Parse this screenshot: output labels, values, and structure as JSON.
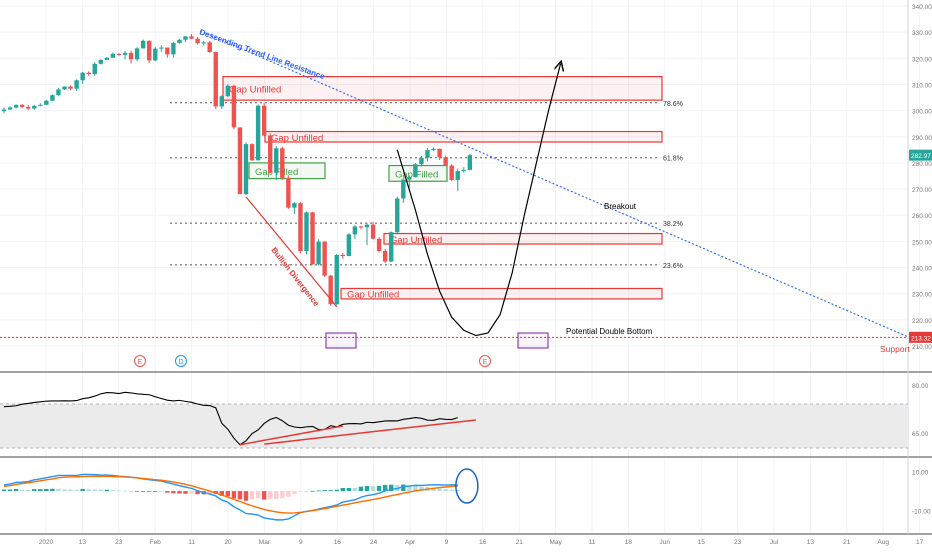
{
  "chart_data": {
    "type": "candlestick",
    "title": "",
    "colors": {
      "up": "#26a69a",
      "down": "#ef5350",
      "trendline": "#2962ff",
      "zone": "#e53935",
      "filled_zone": "#43a047",
      "support": "#e53935",
      "macd_line": "#2196f3",
      "signal_line": "#ff6d00",
      "projection": "#000000",
      "marker_box": "#7b1fa2"
    },
    "y_axis_ticks": [
      "340.00",
      "330.00",
      "320.00",
      "310.00",
      "300.00",
      "290.00",
      "280.00",
      "270.00",
      "260.00",
      "250.00",
      "240.00",
      "230.00",
      "220.00",
      "210.00"
    ],
    "x_axis_ticks": [
      "2020",
      "13",
      "23",
      "Feb",
      "11",
      "20",
      "Mar",
      "9",
      "16",
      "24",
      "Apr",
      "9",
      "16",
      "21",
      "May",
      "11",
      "18",
      "Jun",
      "15",
      "23",
      "Jul",
      "13",
      "21",
      "Aug",
      "17"
    ],
    "price_labels": {
      "current": "282.97",
      "support": "213.32"
    },
    "fib_levels": [
      {
        "label": "78.6%",
        "value": 303
      },
      {
        "label": "61.8%",
        "value": 282
      },
      {
        "label": "38.2%",
        "value": 257
      },
      {
        "label": "23.6%",
        "value": 241
      }
    ],
    "gap_zones": [
      {
        "label": "Gap Unfilled",
        "status": "unfilled",
        "low": 304,
        "high": 313
      },
      {
        "label": "Gap Unfilled",
        "status": "unfilled",
        "low": 288,
        "high": 292
      },
      {
        "label": "Gap Filled",
        "status": "filled",
        "low": 274,
        "high": 280
      },
      {
        "label": "Gap Filled",
        "status": "filled",
        "low": 273,
        "high": 279
      },
      {
        "label": "Gap Unfilled",
        "status": "unfilled",
        "low": 249,
        "high": 253
      },
      {
        "label": "Gap Unfilled",
        "status": "unfilled",
        "low": 228,
        "high": 232
      }
    ],
    "annotations": {
      "trendline": "Descending Trend Line Resistance",
      "divergence": "Bullish Divergence",
      "breakout": "Breakout",
      "double_bottom": "Potential Double Bottom",
      "support": "Support"
    },
    "event_markers": [
      "E",
      "D",
      "E"
    ],
    "candles": [
      [
        299.8,
        301.2,
        299.0,
        300.4
      ],
      [
        300.4,
        301.7,
        300.3,
        301.2
      ],
      [
        301.2,
        302.4,
        300.8,
        302.2
      ],
      [
        302.2,
        302.5,
        300.9,
        301.4
      ],
      [
        301.4,
        302.2,
        300.2,
        300.8
      ],
      [
        300.8,
        302.2,
        300.3,
        301.8
      ],
      [
        301.8,
        302.8,
        301.6,
        302.2
      ],
      [
        302.2,
        304.1,
        302.2,
        303.8
      ],
      [
        303.8,
        306.3,
        303.7,
        305.9
      ],
      [
        305.9,
        308.7,
        305.5,
        308.1
      ],
      [
        308.1,
        309.3,
        307.9,
        309.2
      ],
      [
        309.2,
        309.6,
        307.8,
        308.4
      ],
      [
        308.4,
        311.9,
        307.5,
        311.6
      ],
      [
        311.6,
        314.8,
        310.2,
        314.5
      ],
      [
        314.5,
        315.0,
        313.3,
        314.0
      ],
      [
        314.0,
        318.5,
        313.3,
        317.9
      ],
      [
        317.9,
        319.6,
        317.6,
        319.4
      ],
      [
        319.4,
        320.5,
        319.3,
        320.2
      ],
      [
        320.2,
        322.3,
        320.2,
        321.7
      ],
      [
        321.7,
        322.0,
        321.0,
        321.3
      ],
      [
        321.3,
        322.8,
        319.6,
        322.1
      ],
      [
        322.1,
        322.9,
        318.0,
        319.6
      ],
      [
        319.6,
        324.2,
        318.9,
        323.8
      ],
      [
        323.8,
        327.2,
        323.7,
        326.7
      ],
      [
        326.7,
        326.8,
        318.2,
        319.2
      ],
      [
        319.2,
        324.3,
        318.9,
        323.7
      ],
      [
        323.7,
        325.0,
        322.5,
        324.1
      ],
      [
        324.1,
        324.1,
        320.2,
        321.5
      ],
      [
        321.5,
        326.3,
        320.3,
        325.9
      ],
      [
        325.9,
        327.4,
        325.6,
        327.1
      ],
      [
        327.1,
        328.5,
        326.2,
        328.4
      ],
      [
        328.4,
        329.3,
        327.3,
        327.5
      ],
      [
        327.5,
        328.2,
        325.3,
        325.8
      ],
      [
        325.8,
        326.6,
        324.9,
        326.1
      ],
      [
        326.1,
        326.7,
        322.1,
        322.4
      ],
      [
        322.4,
        322.5,
        300.6,
        301.6
      ],
      [
        301.6,
        305.8,
        300.6,
        305.5
      ],
      [
        305.5,
        310.0,
        305.2,
        309.5
      ],
      [
        309.5,
        309.8,
        292.9,
        293.6
      ],
      [
        293.6,
        293.6,
        268.0,
        268.1
      ],
      [
        268.1,
        287.9,
        267.6,
        287.2
      ],
      [
        287.2,
        287.5,
        280.8,
        281.0
      ],
      [
        281.0,
        302.3,
        280.9,
        301.9
      ],
      [
        301.9,
        303.0,
        290.2,
        290.5
      ],
      [
        290.5,
        291.4,
        276.1,
        276.2
      ],
      [
        276.2,
        286.4,
        273.4,
        285.6
      ],
      [
        285.6,
        286.2,
        273.5,
        274.3
      ],
      [
        274.3,
        275.3,
        262.4,
        262.9
      ],
      [
        262.9,
        265.0,
        260.5,
        264.6
      ],
      [
        264.6,
        265.0,
        245.4,
        246.3
      ],
      [
        246.3,
        261.4,
        245.0,
        261.1
      ],
      [
        261.1,
        261.3,
        241.1,
        241.2
      ],
      [
        241.2,
        250.8,
        240.8,
        249.9
      ],
      [
        249.9,
        250.1,
        236.4,
        236.9
      ],
      [
        236.9,
        237.2,
        225.4,
        226.0
      ],
      [
        226.0,
        245.2,
        225.6,
        244.8
      ],
      [
        244.8,
        245.6,
        243.3,
        244.4
      ],
      [
        244.4,
        253.1,
        244.3,
        252.7
      ],
      [
        252.7,
        256.2,
        250.9,
        255.7
      ],
      [
        255.7,
        256.0,
        254.6,
        255.4
      ],
      [
        255.4,
        257.0,
        248.5,
        256.4
      ],
      [
        256.4,
        257.5,
        250.8,
        251.0
      ],
      [
        251.0,
        251.6,
        245.8,
        246.3
      ],
      [
        246.3,
        247.1,
        241.7,
        242.3
      ],
      [
        242.3,
        253.8,
        242.1,
        253.5
      ],
      [
        253.5,
        267.1,
        253.1,
        266.4
      ],
      [
        266.4,
        274.4,
        264.7,
        273.6
      ],
      [
        273.6,
        275.1,
        270.5,
        274.6
      ],
      [
        274.6,
        280.0,
        274.4,
        279.5
      ],
      [
        279.5,
        282.6,
        278.7,
        282.0
      ],
      [
        282.0,
        285.6,
        280.6,
        284.9
      ],
      [
        284.9,
        285.9,
        284.5,
        285.4
      ],
      [
        285.4,
        285.5,
        281.1,
        282.2
      ],
      [
        282.2,
        282.8,
        278.8,
        279.0
      ],
      [
        279.0,
        279.6,
        273.1,
        273.5
      ],
      [
        273.5,
        277.8,
        269.2,
        276.9
      ],
      [
        276.9,
        278.4,
        276.3,
        277.3
      ],
      [
        277.3,
        283.5,
        277.2,
        282.97
      ]
    ],
    "projection_path": [
      [
        65,
        285
      ],
      [
        68,
        262
      ],
      [
        70,
        245
      ],
      [
        72,
        231
      ],
      [
        74,
        221
      ],
      [
        76,
        216
      ],
      [
        78,
        214
      ],
      [
        80,
        215
      ],
      [
        82,
        222
      ],
      [
        84,
        238
      ],
      [
        86,
        260
      ],
      [
        88,
        280
      ],
      [
        90,
        300
      ],
      [
        92,
        318
      ]
    ],
    "rsi": {
      "ylim": [
        30,
        90
      ],
      "ticks": [
        "80.00",
        "65.00"
      ],
      "overbought": 70,
      "oversold": 30,
      "values": [
        67.6,
        67.9,
        68.4,
        69.8,
        70.5,
        71.4,
        72.0,
        72.6,
        72.8,
        72.8,
        72.9,
        72.8,
        73.1,
        74.8,
        75.6,
        77.2,
        79.2,
        80.4,
        80.2,
        79.5,
        80.6,
        80.1,
        79.3,
        78.8,
        78.4,
        76.6,
        75.0,
        73.5,
        72.8,
        73.3,
        72.4,
        71.5,
        70.0,
        68.8,
        68.6,
        66.5,
        52.4,
        47.1,
        38.9,
        33.0,
        36.5,
        43.1,
        46.4,
        52.3,
        56.0,
        57.8,
        54.8,
        50.7,
        49.1,
        48.5,
        49.2,
        49.6,
        46.8,
        46.9,
        50.3,
        49.2,
        51.5,
        52.1,
        52.2,
        51.9,
        53.4,
        53.0,
        53.8,
        54.6,
        54.7,
        54.6,
        56.1,
        56.8,
        57.7,
        57.0,
        55.3,
        55.2,
        56.6,
        56.1,
        55.9,
        57.6
      ],
      "divergence_line": [
        [
          39,
          33.0
        ],
        [
          56,
          50.0
        ]
      ],
      "trend_line": [
        [
          43,
          33.5
        ],
        [
          78,
          55.5
        ]
      ]
    },
    "macd": {
      "ylim": [
        -16,
        14
      ],
      "ticks": [
        "10.00",
        "-10.00"
      ],
      "macd": [
        3.2,
        3.6,
        4.5,
        4.6,
        4.9,
        5.8,
        6.3,
        6.9,
        7.5,
        8.1,
        8.1,
        8.1,
        8.1,
        8.6,
        8.6,
        8.5,
        8.3,
        8.3,
        8.1,
        7.7,
        7.5,
        7.2,
        6.9,
        6.3,
        5.9,
        5.5,
        5.2,
        4.4,
        3.6,
        2.8,
        2.1,
        1.4,
        0.2,
        -0.8,
        -1.5,
        -2.5,
        -4.6,
        -5.8,
        -8.1,
        -9.7,
        -11.6,
        -11.9,
        -12.4,
        -13.9,
        -14.4,
        -14.9,
        -14.9,
        -14.4,
        -12.8,
        -11.2,
        -10.5,
        -10.0,
        -9.3,
        -8.6,
        -8.0,
        -7.2,
        -5.7,
        -5.1,
        -4.5,
        -3.2,
        -2.3,
        -1.9,
        -1.1,
        0.1,
        0.9,
        1.3,
        2.3,
        2.6,
        3.0,
        2.9,
        3.1,
        3.2,
        3.2,
        3.1,
        3.2,
        3.2
      ],
      "signal": [
        2.4,
        2.8,
        3.4,
        3.9,
        4.3,
        4.8,
        5.3,
        5.8,
        6.3,
        6.9,
        7.2,
        7.3,
        7.4,
        7.5,
        7.6,
        7.6,
        7.6,
        7.6,
        7.5,
        7.4,
        7.3,
        7.1,
        6.8,
        6.5,
        6.2,
        5.9,
        5.6,
        5.2,
        4.7,
        4.1,
        3.5,
        2.7,
        1.8,
        0.9,
        0.0,
        -1.0,
        -2.1,
        -3.1,
        -4.3,
        -5.4,
        -6.6,
        -7.6,
        -8.6,
        -9.5,
        -10.2,
        -10.8,
        -11.2,
        -11.4,
        -11.3,
        -11.0,
        -10.6,
        -10.1,
        -9.6,
        -9.1,
        -8.5,
        -7.9,
        -7.3,
        -6.7,
        -6.1,
        -5.5,
        -4.9,
        -4.4,
        -3.8,
        -3.1,
        -2.4,
        -1.8,
        -1.1,
        -0.5,
        0.1,
        0.6,
        1.0,
        1.4,
        1.8,
        2.1,
        2.4,
        2.6
      ]
    }
  }
}
